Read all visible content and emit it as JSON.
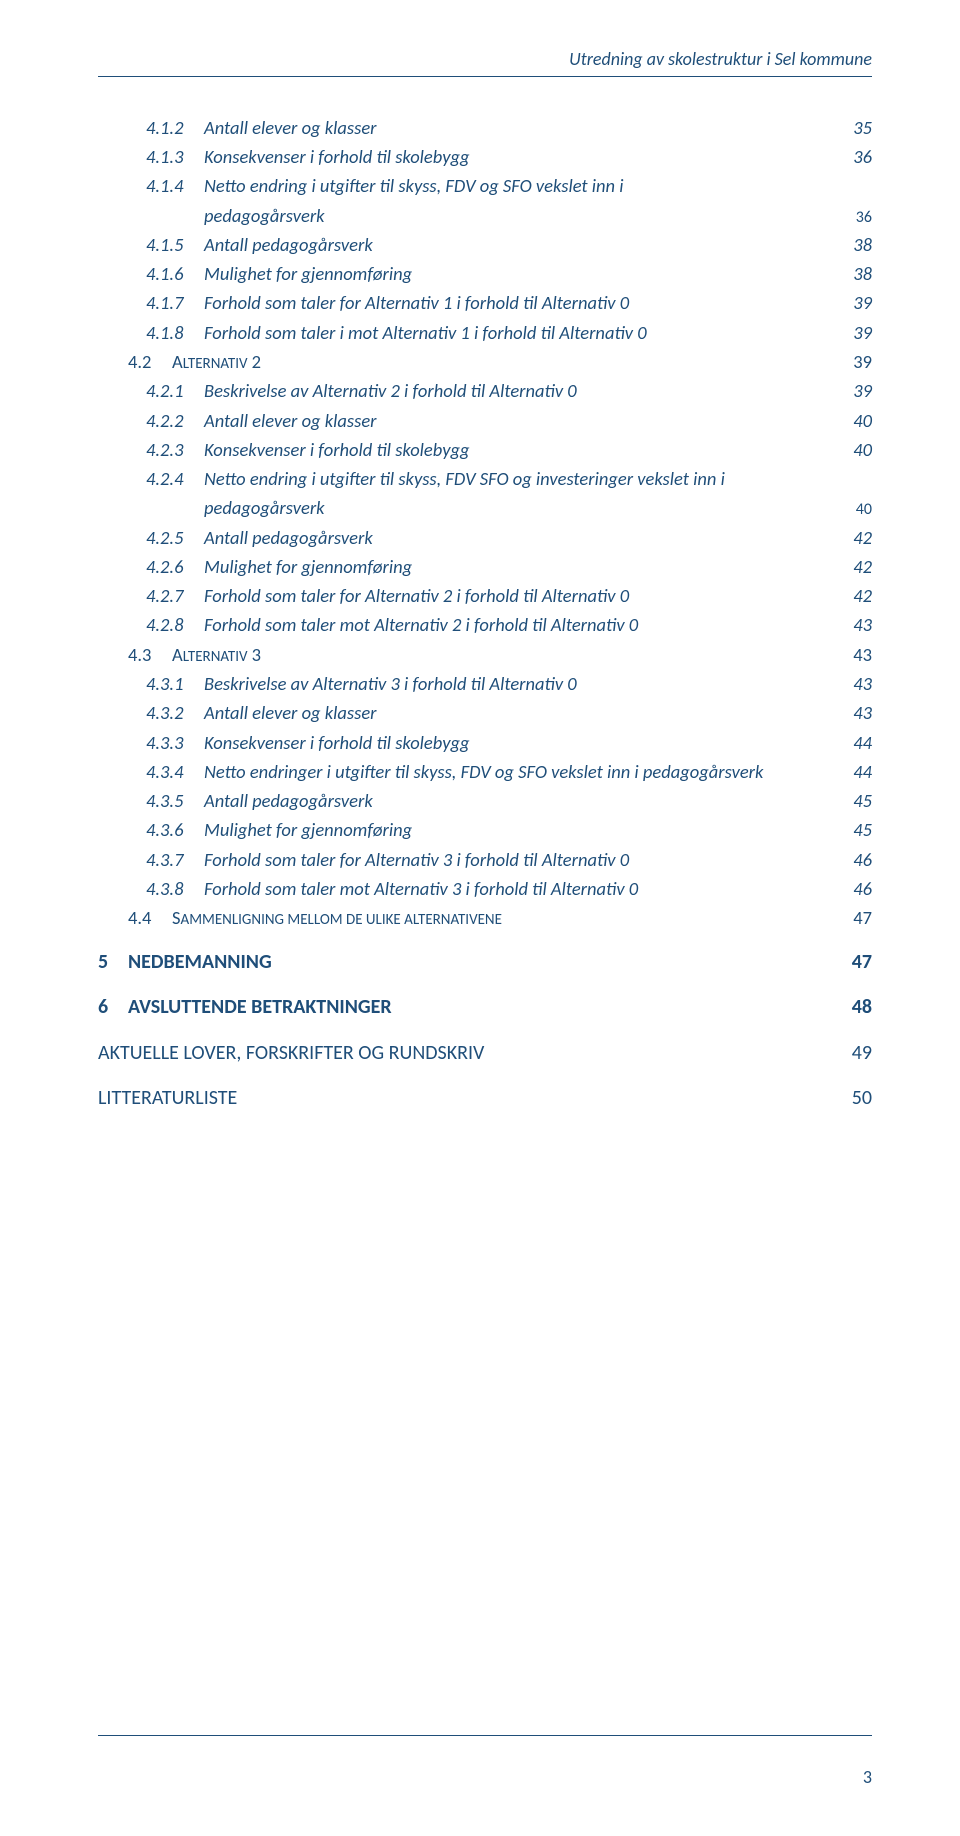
{
  "colors": {
    "text": "#1f4e79",
    "background": "#ffffff"
  },
  "typography": {
    "family": "Calibri",
    "base_size_pt": 11,
    "italic_levels": [
      "l3"
    ],
    "bold_levels": [
      "l1"
    ]
  },
  "header": {
    "title": "Utredning av skolestruktur i Sel kommune"
  },
  "footer": {
    "page_number": "3"
  },
  "toc": [
    {
      "lvl": "l3",
      "num": "4.1.2",
      "txt": "Antall elever og klasser",
      "pg": "35"
    },
    {
      "lvl": "l3",
      "num": "4.1.3",
      "txt": "Konsekvenser i forhold til skolebygg",
      "pg": "36"
    },
    {
      "lvl": "l3",
      "num": "4.1.4",
      "txt": "Netto endring i utgifter til skyss, FDV og SFO vekslet inn i",
      "pg": ""
    },
    {
      "lvl": "cont",
      "num": "",
      "txt": "pedagogårsverk",
      "pg": "36"
    },
    {
      "lvl": "l3",
      "num": "4.1.5",
      "txt": "Antall pedagogårsverk",
      "pg": "38"
    },
    {
      "lvl": "l3",
      "num": "4.1.6",
      "txt": "Mulighet for gjennomføring",
      "pg": "38"
    },
    {
      "lvl": "l3",
      "num": "4.1.7",
      "txt": "Forhold som taler for Alternativ 1 i forhold til Alternativ 0",
      "pg": "39"
    },
    {
      "lvl": "l3",
      "num": "4.1.8",
      "txt": "Forhold som taler i mot Alternativ 1 i forhold til Alternativ 0",
      "pg": "39"
    },
    {
      "lvl": "l2",
      "num": "4.2",
      "txt_pre": "A",
      "txt_sc": "LTERNATIV",
      "txt_post": " 2",
      "pg": "39"
    },
    {
      "lvl": "l3",
      "num": "4.2.1",
      "txt": "Beskrivelse av Alternativ 2 i forhold til Alternativ 0",
      "pg": "39"
    },
    {
      "lvl": "l3",
      "num": "4.2.2",
      "txt": "Antall elever og klasser",
      "pg": "40"
    },
    {
      "lvl": "l3",
      "num": "4.2.3",
      "txt": "Konsekvenser i forhold til skolebygg",
      "pg": "40"
    },
    {
      "lvl": "l3",
      "num": "4.2.4",
      "txt": "Netto endring i utgifter til skyss, FDV SFO og investeringer vekslet inn i",
      "pg": ""
    },
    {
      "lvl": "cont",
      "num": "",
      "txt": "pedagogårsverk",
      "pg": "40"
    },
    {
      "lvl": "l3",
      "num": "4.2.5",
      "txt": "Antall pedagogårsverk",
      "pg": "42"
    },
    {
      "lvl": "l3",
      "num": "4.2.6",
      "txt": "Mulighet for gjennomføring",
      "pg": "42"
    },
    {
      "lvl": "l3",
      "num": "4.2.7",
      "txt": "Forhold som taler for Alternativ 2 i forhold til Alternativ 0",
      "pg": "42"
    },
    {
      "lvl": "l3",
      "num": "4.2.8",
      "txt": "Forhold som taler mot Alternativ 2 i forhold til Alternativ 0",
      "pg": "43"
    },
    {
      "lvl": "l2",
      "num": "4.3",
      "txt_pre": "A",
      "txt_sc": "LTERNATIV",
      "txt_post": " 3",
      "pg": "43"
    },
    {
      "lvl": "l3",
      "num": "4.3.1",
      "txt": "Beskrivelse av Alternativ 3 i forhold til Alternativ 0",
      "pg": "43"
    },
    {
      "lvl": "l3",
      "num": "4.3.2",
      "txt": "Antall elever og klasser",
      "pg": "43"
    },
    {
      "lvl": "l3",
      "num": "4.3.3",
      "txt": "Konsekvenser i forhold til skolebygg",
      "pg": "44"
    },
    {
      "lvl": "l3",
      "num": "4.3.4",
      "txt": "Netto endringer i utgifter til skyss, FDV og SFO vekslet inn i pedagogårsverk",
      "pg": "44"
    },
    {
      "lvl": "l3",
      "num": "4.3.5",
      "txt": "Antall pedagogårsverk",
      "pg": "45"
    },
    {
      "lvl": "l3",
      "num": "4.3.6",
      "txt": "Mulighet for gjennomføring",
      "pg": "45"
    },
    {
      "lvl": "l3",
      "num": "4.3.7",
      "txt": "Forhold som taler for Alternativ 3 i forhold til Alternativ 0",
      "pg": "46"
    },
    {
      "lvl": "l3",
      "num": "4.3.8",
      "txt": "Forhold som taler mot Alternativ 3 i forhold til Alternativ 0",
      "pg": "46"
    },
    {
      "lvl": "l2",
      "num": "4.4",
      "txt_pre": "S",
      "txt_sc": "AMMENLIGNING MELLOM DE ULIKE ALTERNATIVENE",
      "txt_post": "",
      "pg": "47"
    },
    {
      "lvl": "l1",
      "num": "5",
      "txt": "NEDBEMANNING",
      "pg": "47"
    },
    {
      "lvl": "l1",
      "num": "6",
      "txt": "AVSLUTTENDE BETRAKTNINGER",
      "pg": "48"
    },
    {
      "lvl": "l1u",
      "num": "",
      "txt": "AKTUELLE LOVER, FORSKRIFTER OG RUNDSKRIV",
      "pg": "49"
    },
    {
      "lvl": "l1u",
      "num": "",
      "txt": "LITTERATURLISTE",
      "pg": "50"
    }
  ]
}
